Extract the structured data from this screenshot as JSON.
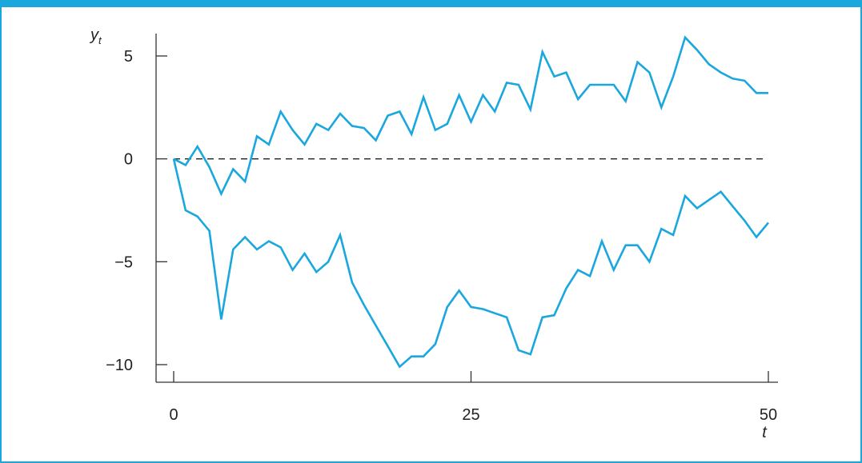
{
  "chart_data": {
    "type": "line",
    "xlabel": "t",
    "ylabel": "y",
    "ylabel_subscript": "t",
    "xlim": [
      -1,
      51
    ],
    "ylim": [
      -11,
      6
    ],
    "xticks": [
      0,
      25,
      50
    ],
    "xtick_labels": [
      "0",
      "25",
      "50"
    ],
    "yticks": [
      5,
      0,
      -5,
      -10
    ],
    "ytick_labels": [
      "5",
      "0",
      "−5",
      "−10"
    ],
    "reference_line": {
      "y": 0,
      "style": "dashed"
    },
    "grid": false,
    "series": [
      {
        "color": "#1aa7de",
        "x": [
          0,
          1,
          2,
          3,
          4,
          5,
          6,
          7,
          8,
          9,
          10,
          11,
          12,
          13,
          14,
          15,
          16,
          17,
          18,
          19,
          20,
          21,
          22,
          23,
          24,
          25,
          26,
          27,
          28,
          29,
          30,
          31,
          32,
          33,
          34,
          35,
          36,
          37,
          38,
          39,
          40,
          41,
          42,
          43,
          44,
          45,
          46,
          47,
          48,
          49,
          50
        ],
        "values": [
          0,
          -2.5,
          -2.8,
          -3.5,
          -7.8,
          -4.4,
          -3.8,
          -4.4,
          -4.0,
          -4.3,
          -5.4,
          -4.6,
          -5.5,
          -5.0,
          -3.7,
          -6.0,
          -7.1,
          -8.1,
          -9.1,
          -10.1,
          -9.6,
          -9.6,
          -9.0,
          -7.2,
          -6.4,
          -7.2,
          -7.3,
          -7.5,
          -7.7,
          -9.3,
          -9.5,
          -7.7,
          -7.6,
          -6.3,
          -5.4,
          -5.7,
          -4.0,
          -5.4,
          -4.2,
          -4.2,
          -5.0,
          -3.4,
          -3.7,
          -1.8,
          -2.4,
          -2.0,
          -1.6,
          -2.3,
          -3.0,
          -3.8,
          -3.1
        ]
      },
      {
        "color": "#1aa7de",
        "x": [
          0,
          1,
          2,
          3,
          4,
          5,
          6,
          7,
          8,
          9,
          10,
          11,
          12,
          13,
          14,
          15,
          16,
          17,
          18,
          19,
          20,
          21,
          22,
          23,
          24,
          25,
          26,
          27,
          28,
          29,
          30,
          31,
          32,
          33,
          34,
          35,
          36,
          37,
          38,
          39,
          40,
          41,
          42,
          43,
          44,
          45,
          46,
          47,
          48,
          49,
          50
        ],
        "values": [
          0,
          -0.3,
          0.6,
          -0.4,
          -1.7,
          -0.5,
          -1.1,
          1.1,
          0.7,
          2.3,
          1.4,
          0.7,
          1.7,
          1.4,
          2.2,
          1.6,
          1.5,
          0.9,
          2.1,
          2.3,
          1.2,
          3.0,
          1.4,
          1.7,
          3.1,
          1.8,
          3.1,
          2.3,
          3.7,
          3.6,
          2.4,
          5.2,
          4.0,
          4.2,
          2.9,
          3.6,
          3.6,
          3.6,
          2.8,
          4.7,
          4.2,
          2.5,
          4.0,
          5.9,
          5.3,
          4.6,
          4.2,
          3.9,
          3.8,
          3.2,
          3.2
        ]
      }
    ]
  }
}
